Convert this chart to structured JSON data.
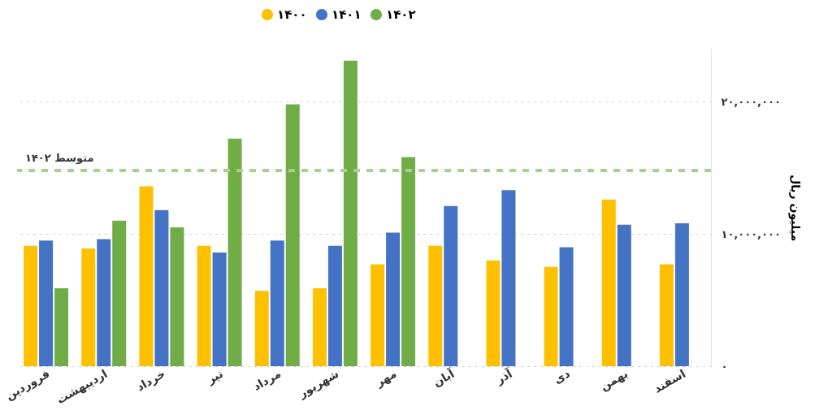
{
  "chart_data": {
    "type": "bar",
    "categories": [
      "فروردین",
      "اردیبهشت",
      "خرداد",
      "تیر",
      "مرداد",
      "شهریور",
      "مهر",
      "آبان",
      "آذر",
      "دی",
      "بهمن",
      "اسفند"
    ],
    "series": [
      {
        "name": "۱۴۰۰",
        "color": "#ffc000",
        "values": [
          9100000,
          8900000,
          13600000,
          9100000,
          5700000,
          5900000,
          7700000,
          9100000,
          8000000,
          7500000,
          12600000,
          7700000
        ]
      },
      {
        "name": "۱۴۰۱",
        "color": "#4472c4",
        "values": [
          9500000,
          9600000,
          11800000,
          8600000,
          9500000,
          9100000,
          10100000,
          12100000,
          13300000,
          9000000,
          10700000,
          10800000
        ]
      },
      {
        "name": "۱۴۰۲",
        "color": "#70ad47",
        "values": [
          5900000,
          11000000,
          10500000,
          17200000,
          19800000,
          23100000,
          15800000,
          null,
          null,
          null,
          null,
          null
        ]
      }
    ],
    "ylabel": "میلیون ریال",
    "ylim": [
      0,
      24000000
    ],
    "yticks": [
      {
        "value": 0,
        "label": "۰"
      },
      {
        "value": 10000000,
        "label": "۱۰,۰۰۰,۰۰۰"
      },
      {
        "value": 20000000,
        "label": "۲۰,۰۰۰,۰۰۰"
      }
    ],
    "ref_lines": [
      {
        "axis": "y",
        "value": 14800000,
        "label": "متوسط ۱۴۰۲",
        "color": "#a9d18e",
        "line_style": "dashed"
      }
    ],
    "grid": "y",
    "legend": "top"
  }
}
